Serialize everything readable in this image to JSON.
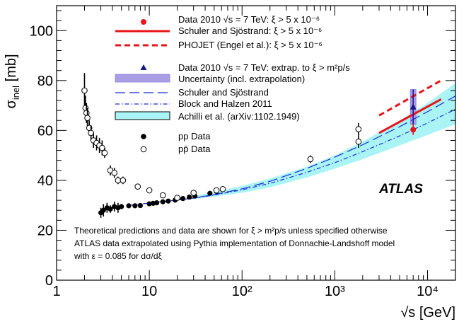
{
  "chart_data": {
    "type": "scatter",
    "xscale": "log",
    "xlim": [
      1,
      20000
    ],
    "ylim": [
      0,
      110
    ],
    "xlabel": "√s [GeV]",
    "ylabel": "σinel [mb]",
    "x_tick_labels": [
      "1",
      "10",
      "10²",
      "10³",
      "10⁴"
    ],
    "y_tick_labels": [
      "0",
      "20",
      "40",
      "60",
      "80",
      "100"
    ],
    "x_ticks": [
      1,
      10,
      100,
      1000,
      10000
    ],
    "y_ticks": [
      0,
      20,
      40,
      60,
      80,
      100
    ],
    "atlas_label": "ATLAS",
    "legend": [
      {
        "marker": "red-circle",
        "text": "Data 2010 √s = 7 TeV: ξ > 5 x 10⁻⁶"
      },
      {
        "marker": "red-solid-line",
        "text": "Schuler and Sjöstrand: ξ > 5 x 10⁻⁶"
      },
      {
        "marker": "red-dashed-line",
        "text": "PHOJET (Engel et al.):  ξ > 5 x 10⁻⁶"
      },
      {
        "marker": "blue-triangle",
        "text": "Data 2010 √s = 7 TeV: extrap. to ξ > m²p/s"
      },
      {
        "marker": "purple-box",
        "text": "Uncertainty (incl. extrapolation)"
      },
      {
        "marker": "blue-long-dash",
        "text": "Schuler and Sjöstrand"
      },
      {
        "marker": "blue-dash-dot",
        "text": "Block and Halzen 2011"
      },
      {
        "marker": "cyan-box",
        "text": "Achilli et al. (arXiv:1102.1949)"
      },
      {
        "marker": "filled-circle",
        "text": "pp Data"
      },
      {
        "marker": "open-circle",
        "text": "pp̄ Data"
      }
    ],
    "notes": [
      "Theoretical predictions and data are shown for ξ > m²p/s unless specified otherwise",
      "ATLAS data extrapolated using Pythia implementation of Donnachie-Landshoff model",
      "with ε = 0.085 for dσ/dξ"
    ],
    "series": [
      {
        "name": "pp Data",
        "marker": "filled",
        "points": [
          [
            3.0,
            27,
            2
          ],
          [
            3.2,
            28,
            2.5
          ],
          [
            3.5,
            29,
            2
          ],
          [
            3.8,
            28.5,
            1.5
          ],
          [
            4.2,
            29.5,
            2
          ],
          [
            4.6,
            29,
            2
          ],
          [
            5.0,
            29.5,
            1
          ],
          [
            6.0,
            29.8,
            0.8
          ],
          [
            7.0,
            29.8,
            0.8
          ],
          [
            8.0,
            29.9,
            0.8
          ],
          [
            10,
            30.6,
            0.6
          ],
          [
            11,
            30.8,
            0.6
          ],
          [
            12,
            31.0,
            0.6
          ],
          [
            14,
            31.4,
            0.6
          ],
          [
            16,
            31.7,
            0.6
          ],
          [
            19,
            32.1,
            0.6
          ],
          [
            23,
            32.7,
            0.6
          ],
          [
            27,
            33.3,
            0.6
          ],
          [
            31,
            33.7,
            0.6
          ],
          [
            45,
            34.8,
            0.6
          ],
          [
            53,
            35.6,
            0.6
          ],
          [
            62,
            36.3,
            0.6
          ]
        ]
      },
      {
        "name": "pp̄ Data",
        "marker": "open",
        "points": [
          [
            2.0,
            76,
            7
          ],
          [
            2.05,
            69,
            5
          ],
          [
            2.1,
            67,
            4
          ],
          [
            2.15,
            65,
            4
          ],
          [
            2.25,
            61,
            3
          ],
          [
            2.35,
            59,
            3
          ],
          [
            2.5,
            56,
            3
          ],
          [
            2.7,
            55,
            3
          ],
          [
            2.9,
            54,
            3
          ],
          [
            3.1,
            53,
            3
          ],
          [
            3.3,
            51,
            2
          ],
          [
            3.8,
            44,
            2
          ],
          [
            4.2,
            43,
            2
          ],
          [
            4.6,
            40,
            1.5
          ],
          [
            5.2,
            40,
            1.5
          ],
          [
            7.5,
            37.5,
            1
          ],
          [
            10,
            36,
            1
          ],
          [
            14,
            34,
            1
          ],
          [
            20,
            33,
            1
          ],
          [
            30,
            35,
            1
          ],
          [
            53,
            36,
            1
          ],
          [
            62,
            36.5,
            1
          ],
          [
            546,
            48.5,
            1.5
          ],
          [
            1800,
            55.5,
            2.5
          ],
          [
            1800,
            60.5,
            2.5
          ]
        ]
      },
      {
        "name": "Data 2010 √s = 7 TeV: ξ > 5 x 10⁻⁶",
        "marker": "red-circle",
        "points": [
          [
            7000,
            60.3,
            2.1
          ]
        ]
      },
      {
        "name": "Data 2010 √s = 7 TeV: extrap. to ξ > m²p/s",
        "marker": "blue-triangle",
        "points": [
          [
            7000,
            69.4,
            7
          ]
        ]
      }
    ],
    "curves": [
      {
        "name": "Schuler and Sjöstrand: ξ > 5 x 10⁻⁶",
        "style": "red-solid",
        "x": [
          3000,
          14000
        ],
        "y": [
          59,
          72.5
        ]
      },
      {
        "name": "PHOJET (Engel et al.):  ξ > 5 x 10⁻⁶",
        "style": "red-dashed",
        "x": [
          3000,
          14000
        ],
        "y": [
          66,
          80
        ]
      },
      {
        "name": "Schuler and Sjöstrand",
        "style": "blue-long-dash",
        "x": [
          6,
          10,
          20,
          30,
          50,
          100,
          200,
          500,
          1000,
          2000,
          5000,
          10000,
          20000
        ],
        "y": [
          30,
          30.9,
          32.1,
          32.9,
          34.3,
          36.6,
          39.6,
          44.8,
          49.3,
          54.3,
          61.5,
          67.5,
          73.8
        ]
      },
      {
        "name": "Block and Halzen 2011",
        "style": "blue-dash-dot",
        "x": [
          20,
          30,
          50,
          100,
          200,
          500,
          1000,
          2000,
          5000,
          10000,
          20000
        ],
        "y": [
          32.3,
          32.9,
          34.1,
          36.2,
          38.8,
          43.2,
          47.1,
          51.5,
          57.8,
          63,
          68.5
        ]
      },
      {
        "name": "Achilli et al. (arXiv:1102.1949)",
        "style": "cyan-band",
        "x": [
          30,
          50,
          100,
          200,
          500,
          1000,
          2000,
          5000,
          10000,
          20000
        ],
        "ylow": [
          32.5,
          33.5,
          35,
          37.2,
          41.2,
          44.7,
          48.5,
          54,
          58.2,
          62.5
        ],
        "yhigh": [
          33.8,
          35.3,
          37.8,
          40.7,
          45.5,
          50,
          55.5,
          64,
          71,
          79
        ]
      },
      {
        "name": "Uncertainty (incl. extrapolation)",
        "style": "purple-box",
        "x": [
          7000
        ],
        "ylow": [
          62.4
        ],
        "yhigh": [
          76.4
        ]
      }
    ]
  }
}
